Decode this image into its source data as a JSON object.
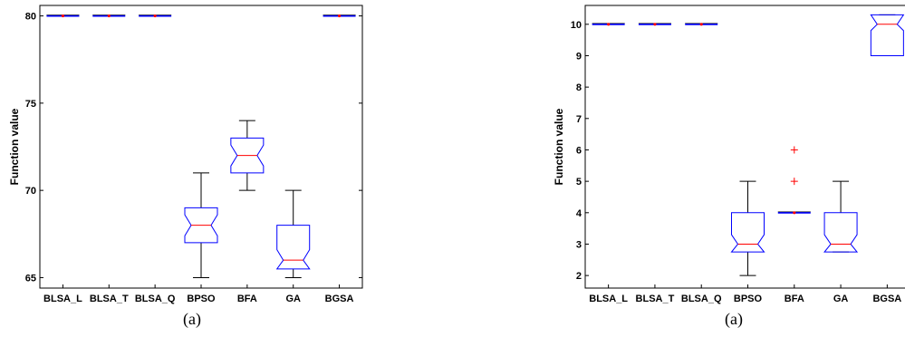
{
  "chart_data": [
    {
      "type": "box",
      "title": "",
      "xlabel": "",
      "ylabel": "Function value",
      "caption": "(a)",
      "ylim": [
        64.4,
        80.6
      ],
      "yticks": [
        65,
        70,
        75,
        80
      ],
      "grid": false,
      "categories": [
        "BLSA_L",
        "BLSA_T",
        "BLSA_Q",
        "BPSO",
        "BFA",
        "GA",
        "BGSA"
      ],
      "boxes": [
        {
          "min": 80,
          "q1": 80,
          "median": 80,
          "q3": 80,
          "max": 80,
          "notch_low": 80,
          "notch_high": 80,
          "outliers": []
        },
        {
          "min": 80,
          "q1": 80,
          "median": 80,
          "q3": 80,
          "max": 80,
          "notch_low": 80,
          "notch_high": 80,
          "outliers": []
        },
        {
          "min": 80,
          "q1": 80,
          "median": 80,
          "q3": 80,
          "max": 80,
          "notch_low": 80,
          "notch_high": 80,
          "outliers": []
        },
        {
          "min": 65,
          "q1": 67,
          "median": 68,
          "q3": 69,
          "max": 71,
          "notch_low": 67.4,
          "notch_high": 68.6,
          "outliers": []
        },
        {
          "min": 70,
          "q1": 71,
          "median": 72,
          "q3": 73,
          "max": 74,
          "notch_low": 71.4,
          "notch_high": 72.6,
          "outliers": []
        },
        {
          "min": 65,
          "q1": 65.5,
          "median": 66,
          "q3": 68,
          "max": 70,
          "notch_low": 65.5,
          "notch_high": 66.6,
          "outliers": []
        },
        {
          "min": 80,
          "q1": 80,
          "median": 80,
          "q3": 80,
          "max": 80,
          "notch_low": 80,
          "notch_high": 80,
          "outliers": []
        }
      ]
    },
    {
      "type": "box",
      "title": "",
      "xlabel": "",
      "ylabel": "Function value",
      "caption": "(a)",
      "ylim": [
        1.6,
        10.6
      ],
      "yticks": [
        2,
        3,
        4,
        5,
        6,
        7,
        8,
        9,
        10
      ],
      "grid": false,
      "categories": [
        "BLSA_L",
        "BLSA_T",
        "BLSA_Q",
        "BPSO",
        "BFA",
        "GA",
        "BGSA"
      ],
      "boxes": [
        {
          "min": 10,
          "q1": 10,
          "median": 10,
          "q3": 10,
          "max": 10,
          "notch_low": 10,
          "notch_high": 10,
          "outliers": []
        },
        {
          "min": 10,
          "q1": 10,
          "median": 10,
          "q3": 10,
          "max": 10,
          "notch_low": 10,
          "notch_high": 10,
          "outliers": []
        },
        {
          "min": 10,
          "q1": 10,
          "median": 10,
          "q3": 10,
          "max": 10,
          "notch_low": 10,
          "notch_high": 10,
          "outliers": []
        },
        {
          "min": 2,
          "q1": 2.75,
          "median": 3,
          "q3": 4,
          "max": 5,
          "notch_low": 2.75,
          "notch_high": 3.3,
          "outliers": []
        },
        {
          "min": 4,
          "q1": 4,
          "median": 4,
          "q3": 4,
          "max": 4,
          "notch_low": 4,
          "notch_high": 4,
          "outliers": [
            5,
            6
          ]
        },
        {
          "min": 2.75,
          "q1": 2.75,
          "median": 3,
          "q3": 4,
          "max": 5,
          "notch_low": 2.75,
          "notch_high": 3.3,
          "outliers": []
        },
        {
          "min": 9,
          "q1": 9,
          "median": 10,
          "q3": 10.3,
          "max": 10.3,
          "notch_low": 9.8,
          "notch_high": 10.3,
          "outliers": []
        }
      ]
    }
  ]
}
